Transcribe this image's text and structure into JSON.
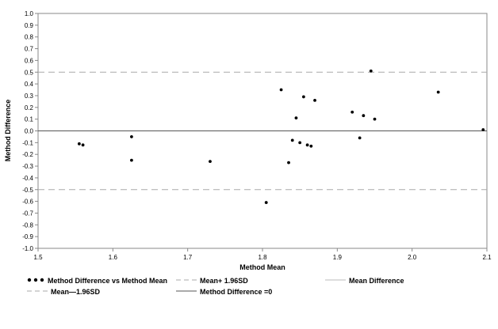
{
  "chart_data": {
    "type": "scatter",
    "title": "",
    "xlabel": "Method Mean",
    "ylabel": "Method Difference",
    "xlim": [
      1.5,
      2.1
    ],
    "ylim": [
      -1.0,
      1.0
    ],
    "x_ticks": [
      "1.5",
      "1.6",
      "1.7",
      "1.8",
      "1.9",
      "2.0",
      "2.1"
    ],
    "x_tick_values": [
      1.5,
      1.6,
      1.7,
      1.8,
      1.9,
      2.0,
      2.1
    ],
    "y_ticks": [
      "-1.0",
      "-0.9",
      "-0.8",
      "-0.7",
      "-0.6",
      "-0.5",
      "-0.4",
      "-0.3",
      "-0.2",
      "-0.1",
      "0.0",
      "0.1",
      "0.2",
      "0.3",
      "0.4",
      "0.5",
      "0.6",
      "0.7",
      "0.8",
      "0.9",
      "1.0"
    ],
    "y_tick_values": [
      -1.0,
      -0.9,
      -0.8,
      -0.7,
      -0.6,
      -0.5,
      -0.4,
      -0.3,
      -0.2,
      -0.1,
      0.0,
      0.1,
      0.2,
      0.3,
      0.4,
      0.5,
      0.6,
      0.7,
      0.8,
      0.9,
      1.0
    ],
    "grid": false,
    "legend_position": "bottom",
    "series": [
      {
        "name": "Method Difference vs Method Mean",
        "points": [
          {
            "x": 1.555,
            "y": -0.11
          },
          {
            "x": 1.56,
            "y": -0.12
          },
          {
            "x": 1.625,
            "y": -0.05
          },
          {
            "x": 1.625,
            "y": -0.25
          },
          {
            "x": 1.73,
            "y": -0.26
          },
          {
            "x": 1.805,
            "y": -0.61
          },
          {
            "x": 1.825,
            "y": 0.35
          },
          {
            "x": 1.835,
            "y": -0.27
          },
          {
            "x": 1.84,
            "y": -0.08
          },
          {
            "x": 1.845,
            "y": 0.11
          },
          {
            "x": 1.85,
            "y": -0.1
          },
          {
            "x": 1.855,
            "y": 0.29
          },
          {
            "x": 1.86,
            "y": -0.12
          },
          {
            "x": 1.865,
            "y": -0.13
          },
          {
            "x": 1.87,
            "y": 0.26
          },
          {
            "x": 1.92,
            "y": 0.16
          },
          {
            "x": 1.93,
            "y": -0.06
          },
          {
            "x": 1.935,
            "y": 0.13
          },
          {
            "x": 1.945,
            "y": 0.51
          },
          {
            "x": 1.95,
            "y": 0.1
          },
          {
            "x": 2.035,
            "y": 0.33
          },
          {
            "x": 2.095,
            "y": 0.01
          }
        ]
      }
    ],
    "reference_lines": [
      {
        "name": "Mean+ 1.96SD",
        "y": 0.5,
        "style": "dashed",
        "color": "#aaaaaa"
      },
      {
        "name": "Mean Difference",
        "y": 0.0,
        "style": "solid",
        "color": "#bbbbbb"
      },
      {
        "name": "Mean—1.96SD",
        "y": -0.5,
        "style": "dashed",
        "color": "#aaaaaa"
      },
      {
        "name": "Method Difference =0",
        "y": 0.0,
        "style": "solid",
        "color": "#555555"
      }
    ]
  },
  "legend": {
    "scatter_label": "Method Difference vs Method Mean",
    "upper_label": "Mean+ 1.96SD",
    "mean_label": "Mean Difference",
    "lower_label": "Mean—1.96SD",
    "zero_label": "Method Difference =0"
  }
}
